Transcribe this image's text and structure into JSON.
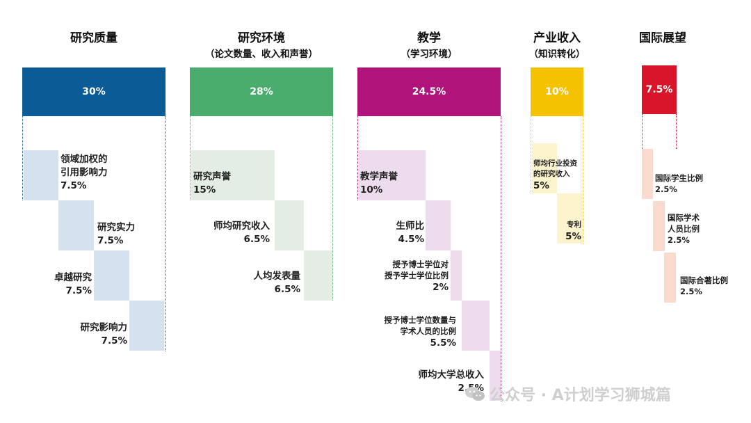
{
  "colors": {
    "research_quality": "#0b5c96",
    "research_environment": "#4bad6d",
    "teaching": "#b0137a",
    "industry": "#f5c200",
    "international": "#d9152a",
    "rq_light": "#d3e2ee",
    "re_light": "#e3ede3",
    "t_light": "#ecdcee",
    "i_light": "#fdf3cc",
    "int_light": "#fadbcd"
  },
  "columns": {
    "research_quality": {
      "title": "研究质量",
      "weight": "30%",
      "items": [
        {
          "name_lines": [
            "领域加权的",
            "引用影响力"
          ],
          "value": "7.5%"
        },
        {
          "name_lines": [
            "研究实力"
          ],
          "value": "7.5%"
        },
        {
          "name_lines": [
            "卓越研究"
          ],
          "value": "7.5%"
        },
        {
          "name_lines": [
            "研究影响力"
          ],
          "value": "7.5%"
        }
      ]
    },
    "research_environment": {
      "title": "研究环境",
      "subtitle": "（论文数量、收入和声誉）",
      "weight": "28%",
      "items": [
        {
          "name_lines": [
            "研究声誉"
          ],
          "value": "15%"
        },
        {
          "name_lines": [
            "师均研究收入"
          ],
          "value": "6.5%"
        },
        {
          "name_lines": [
            "人均发表量"
          ],
          "value": "6.5%"
        }
      ]
    },
    "teaching": {
      "title": "教学",
      "subtitle": "（学习环境）",
      "weight": "24.5%",
      "items": [
        {
          "name_lines": [
            "教学声誉"
          ],
          "value": "10%"
        },
        {
          "name_lines": [
            "生师比"
          ],
          "value": "4.5%"
        },
        {
          "name_lines": [
            "授予博士学位对",
            "授予学士学位比例"
          ],
          "value": "2%"
        },
        {
          "name_lines": [
            "授予博士学位数量与",
            "学术人员的比例"
          ],
          "value": "5.5%"
        },
        {
          "name_lines": [
            "师均大学总收入"
          ],
          "value": "2.5%"
        }
      ]
    },
    "industry": {
      "title": "产业收入",
      "subtitle": "（知识转化）",
      "weight": "10%",
      "items": [
        {
          "name_lines": [
            "师均行业投资",
            "的研究收入"
          ],
          "value": "5%"
        },
        {
          "name_lines": [
            "专利"
          ],
          "value": "5%"
        }
      ]
    },
    "international": {
      "title": "国际展望",
      "weight": "7.5%",
      "items": [
        {
          "name_lines": [
            "国际学生比例"
          ],
          "value": "2.5%"
        },
        {
          "name_lines": [
            "国际学术",
            "人员比例"
          ],
          "value": "2.5%"
        },
        {
          "name_lines": [
            "国际合著比例"
          ],
          "value": "2.5%"
        }
      ]
    }
  },
  "watermark": {
    "icon": "wechat-icon",
    "text": "公众号 · A计划学习狮城篇"
  }
}
